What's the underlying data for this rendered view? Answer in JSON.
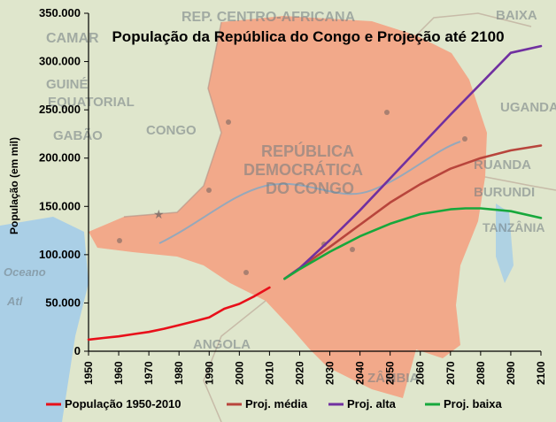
{
  "chart_data": {
    "type": "line",
    "title": "População da República do Congo e Projeção até 2100",
    "ylabel": "População (em mil)",
    "xlabel": "",
    "xlim": [
      1950,
      2100
    ],
    "ylim": [
      0,
      350000
    ],
    "x_ticks": [
      "1950",
      "1960",
      "1970",
      "1980",
      "1990",
      "2000",
      "2010",
      "2020",
      "2030",
      "2040",
      "2050",
      "2060",
      "2070",
      "2080",
      "2090",
      "2100"
    ],
    "y_ticks": [
      "0",
      "50.000",
      "100.000",
      "150.000",
      "200.000",
      "250.000",
      "300.000",
      "350.000"
    ],
    "grid": false,
    "legend_position": "bottom",
    "series": [
      {
        "name": "População 1950-2010",
        "color": "#e8101a",
        "points": [
          [
            1950,
            12000
          ],
          [
            1955,
            13700
          ],
          [
            1960,
            15400
          ],
          [
            1965,
            17800
          ],
          [
            1970,
            20000
          ],
          [
            1975,
            23300
          ],
          [
            1980,
            27000
          ],
          [
            1985,
            31000
          ],
          [
            1990,
            35000
          ],
          [
            1995,
            44000
          ],
          [
            2000,
            49000
          ],
          [
            2005,
            57000
          ],
          [
            2010,
            66000
          ]
        ]
      },
      {
        "name": "Proj. média",
        "color": "#b8453c",
        "points": [
          [
            2015,
            75000
          ],
          [
            2020,
            86000
          ],
          [
            2030,
            108000
          ],
          [
            2040,
            131000
          ],
          [
            2050,
            154000
          ],
          [
            2060,
            173000
          ],
          [
            2070,
            189000
          ],
          [
            2080,
            200000
          ],
          [
            2090,
            208000
          ],
          [
            2100,
            213000
          ]
        ]
      },
      {
        "name": "Proj. alta",
        "color": "#7030a0",
        "points": [
          [
            2015,
            75000
          ],
          [
            2020,
            86000
          ],
          [
            2030,
            115000
          ],
          [
            2040,
            146000
          ],
          [
            2050,
            179000
          ],
          [
            2060,
            212000
          ],
          [
            2070,
            245000
          ],
          [
            2080,
            277000
          ],
          [
            2090,
            309000
          ],
          [
            2100,
            316000
          ]
        ]
      },
      {
        "name": "Proj. baixa",
        "color": "#17a83c",
        "points": [
          [
            2015,
            75000
          ],
          [
            2020,
            85000
          ],
          [
            2030,
            103000
          ],
          [
            2040,
            119000
          ],
          [
            2050,
            132000
          ],
          [
            2060,
            142000
          ],
          [
            2070,
            147000
          ],
          [
            2075,
            148000
          ],
          [
            2080,
            148000
          ],
          [
            2090,
            145000
          ],
          [
            2100,
            138000
          ]
        ]
      }
    ]
  },
  "background_map": {
    "labels": [
      "REP. CENTRO-AFRICANA",
      "CAMAR",
      "GUINÉ",
      "EQUATORIAL",
      "GABÃO",
      "CONGO",
      "REPÚBLICA",
      "DEMOCRÁTICA",
      "DO CONGO",
      "UGANDA",
      "RUANDA",
      "BURUNDI",
      "TANZÂNIA",
      "BAIXA",
      "ANGOLA",
      "ZÂMBIA",
      "Oceano",
      "Atl"
    ]
  }
}
